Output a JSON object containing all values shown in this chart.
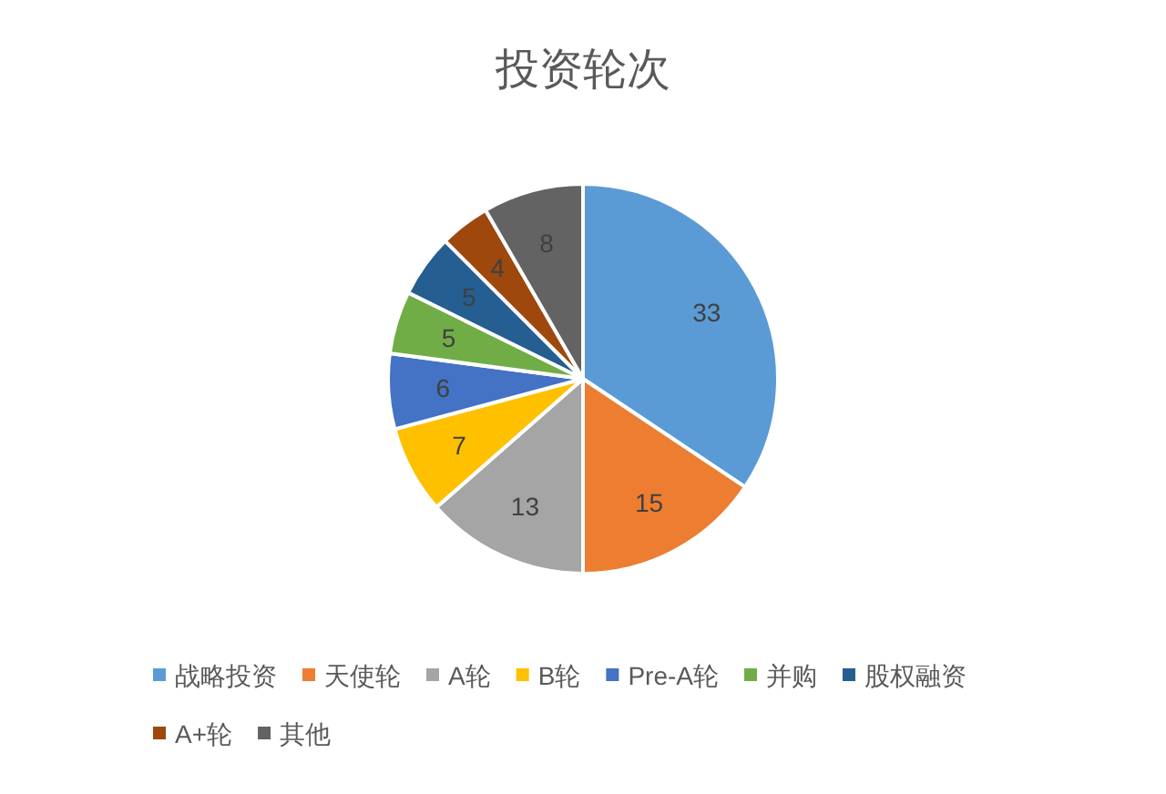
{
  "chart_data": {
    "type": "pie",
    "title": "投资轮次",
    "categories": [
      "战略投资",
      "天使轮",
      "A轮",
      "B轮",
      "Pre-A轮",
      "并购",
      "股权融资",
      "A+轮",
      "其他"
    ],
    "values": [
      33,
      15,
      13,
      7,
      6,
      5,
      5,
      4,
      8
    ],
    "colors": [
      "#5b9bd5",
      "#ed7d31",
      "#a5a5a5",
      "#ffc000",
      "#4472c4",
      "#70ad47",
      "#255e91",
      "#9e480e",
      "#636363"
    ],
    "data_labels": true,
    "legend": "bottom"
  }
}
